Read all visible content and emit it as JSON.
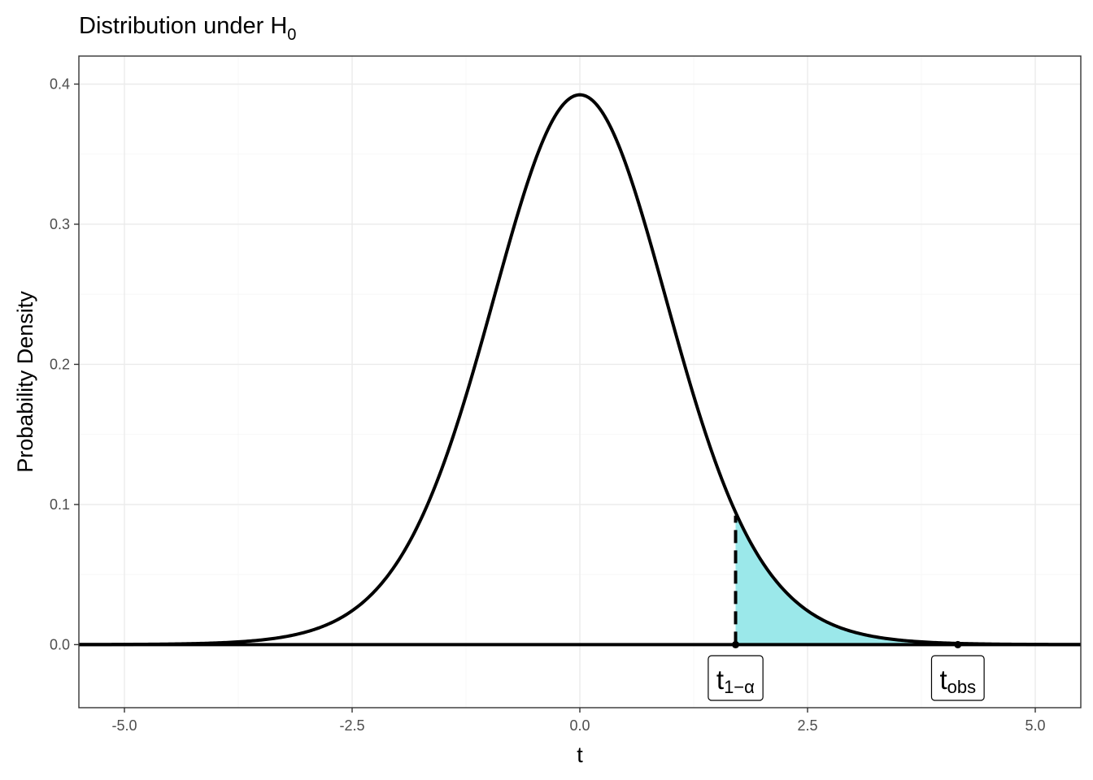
{
  "chart_data": {
    "type": "line",
    "title": "Distribution under H",
    "title_subscript": "0",
    "xlabel": "t",
    "ylabel": "Probability Density",
    "xlim": [
      -5.5,
      5.5
    ],
    "ylim": [
      -0.045,
      0.42
    ],
    "x_ticks": [
      -5.0,
      -2.5,
      0.0,
      2.5,
      5.0
    ],
    "x_tick_labels": [
      "-5.0",
      "-2.5",
      "0.0",
      "2.5",
      "5.0"
    ],
    "y_ticks": [
      0.0,
      0.1,
      0.2,
      0.3,
      0.4
    ],
    "y_tick_labels": [
      "0.0",
      "0.1",
      "0.2",
      "0.3",
      "0.4"
    ],
    "grid": true,
    "legend": "none",
    "series": [
      {
        "distribution": "t",
        "df": 15,
        "x_range": [
          -5.5,
          5.5
        ],
        "color": "#000000"
      }
    ],
    "shaded_region": {
      "from": 1.71,
      "to": 4.2,
      "color": "#9be8ea"
    },
    "critical_value": 1.71,
    "observed_value": 4.15,
    "annotations": [
      {
        "label": "t",
        "subscript": "1−α",
        "x": 1.71
      },
      {
        "label": "t",
        "subscript": "obs",
        "x": 4.15
      }
    ]
  }
}
